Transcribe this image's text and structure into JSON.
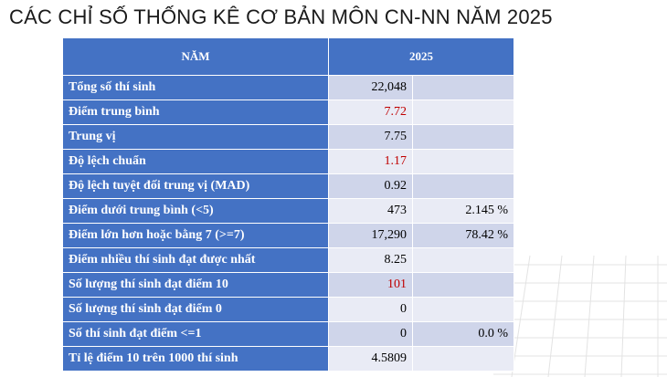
{
  "title": "CÁC CHỈ SỐ THỐNG KÊ CƠ BẢN MÔN CN-NN NĂM 2025",
  "header": {
    "col1": "NĂM",
    "col2": "2025"
  },
  "colors": {
    "header_bg": "#4472c4",
    "highlight": "#c00000"
  },
  "rows": [
    {
      "label": "Tổng số thí sinh",
      "value": "22,048",
      "percent": ""
    },
    {
      "label": "Điểm trung bình",
      "value": "7.72",
      "percent": ""
    },
    {
      "label": "Trung vị",
      "value": "7.75",
      "percent": ""
    },
    {
      "label": "Độ lệch chuẩn",
      "value": "1.17",
      "percent": ""
    },
    {
      "label": "Độ lệch tuyệt đối trung vị (MAD)",
      "value": "0.92",
      "percent": ""
    },
    {
      "label": "Điểm dưới trung bình (<5)",
      "value": "473",
      "percent": "2.145 %"
    },
    {
      "label": "Điểm lớn hơn hoặc bằng 7 (>=7)",
      "value": "17,290",
      "percent": "78.42 %"
    },
    {
      "label": "Điểm nhiều thí sinh đạt được nhất",
      "value": "8.25",
      "percent": ""
    },
    {
      "label": "Số lượng thí sinh đạt điểm 10",
      "value": "101",
      "percent": ""
    },
    {
      "label": "Số lượng thí sinh đạt điểm 0",
      "value": "0",
      "percent": ""
    },
    {
      "label": "Số thí sinh đạt điểm <=1",
      "value": "0",
      "percent": "0.0 %"
    },
    {
      "label": "Tỉ lệ điểm 10 trên 1000 thí sinh",
      "value": "4.5809",
      "percent": ""
    }
  ]
}
